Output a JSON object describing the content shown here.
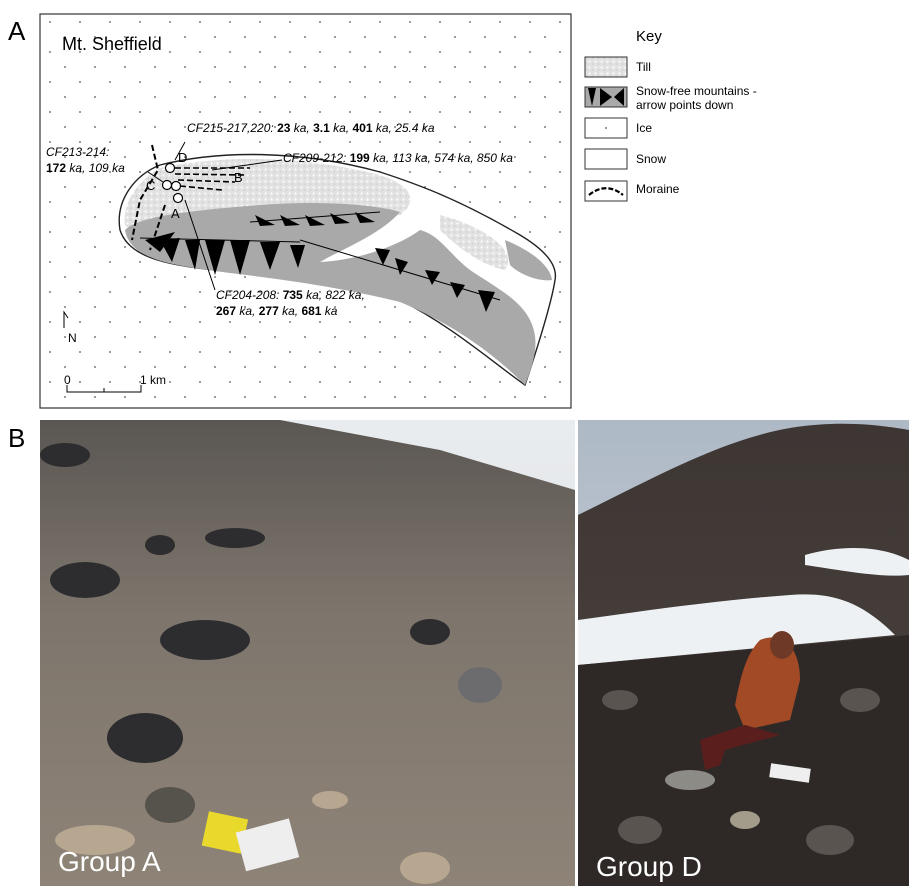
{
  "panel_a": {
    "label": "A",
    "title": "Mt. Sheffield",
    "sample_sites": [
      "D",
      "B",
      "C",
      "A"
    ],
    "annotations": [
      {
        "lines": [
          [
            {
              "text": "CF215-217,220: ",
              "bold": false
            },
            {
              "text": "23",
              "bold": true
            },
            {
              "text": " ka, ",
              "bold": false
            },
            {
              "text": "3.1",
              "bold": true
            },
            {
              "text": " ka, ",
              "bold": false
            },
            {
              "text": "401",
              "bold": true
            },
            {
              "text": " ka, 25.4 ka",
              "bold": false
            }
          ]
        ]
      },
      {
        "lines": [
          [
            {
              "text": "CF209-212: ",
              "bold": false
            },
            {
              "text": "199",
              "bold": true
            },
            {
              "text": " ka, 113 ka, 574 ka, 850 ka",
              "bold": false
            }
          ]
        ]
      },
      {
        "lines": [
          [
            {
              "text": "CF213-214:",
              "bold": false
            }
          ],
          [
            {
              "text": "172",
              "bold": true
            },
            {
              "text": " ka, 109 ka",
              "bold": false
            }
          ]
        ]
      },
      {
        "lines": [
          [
            {
              "text": "CF204-208: ",
              "bold": false
            },
            {
              "text": "735",
              "bold": true
            },
            {
              "text": " ka, 822 ka,",
              "bold": false
            }
          ],
          [
            {
              "text": "267",
              "bold": true
            },
            {
              "text": " ka, ",
              "bold": false
            },
            {
              "text": "277",
              "bold": true
            },
            {
              "text": " ka, ",
              "bold": false
            },
            {
              "text": "681",
              "bold": true
            },
            {
              "text": " ka",
              "bold": false
            }
          ]
        ]
      }
    ],
    "north": "N",
    "scale": [
      "0",
      "1 km"
    ],
    "key": {
      "title": "Key",
      "items": [
        {
          "lines": [
            "Till"
          ]
        },
        {
          "lines": [
            "Snow-free mountains -",
            "arrow points down"
          ]
        },
        {
          "lines": [
            "Ice"
          ]
        },
        {
          "lines": [
            "Snow"
          ]
        },
        {
          "lines": [
            "Moraine"
          ]
        }
      ]
    }
  },
  "panel_b": {
    "label": "B",
    "photos": [
      {
        "caption": "Group A"
      },
      {
        "caption": "Group D"
      }
    ]
  }
}
